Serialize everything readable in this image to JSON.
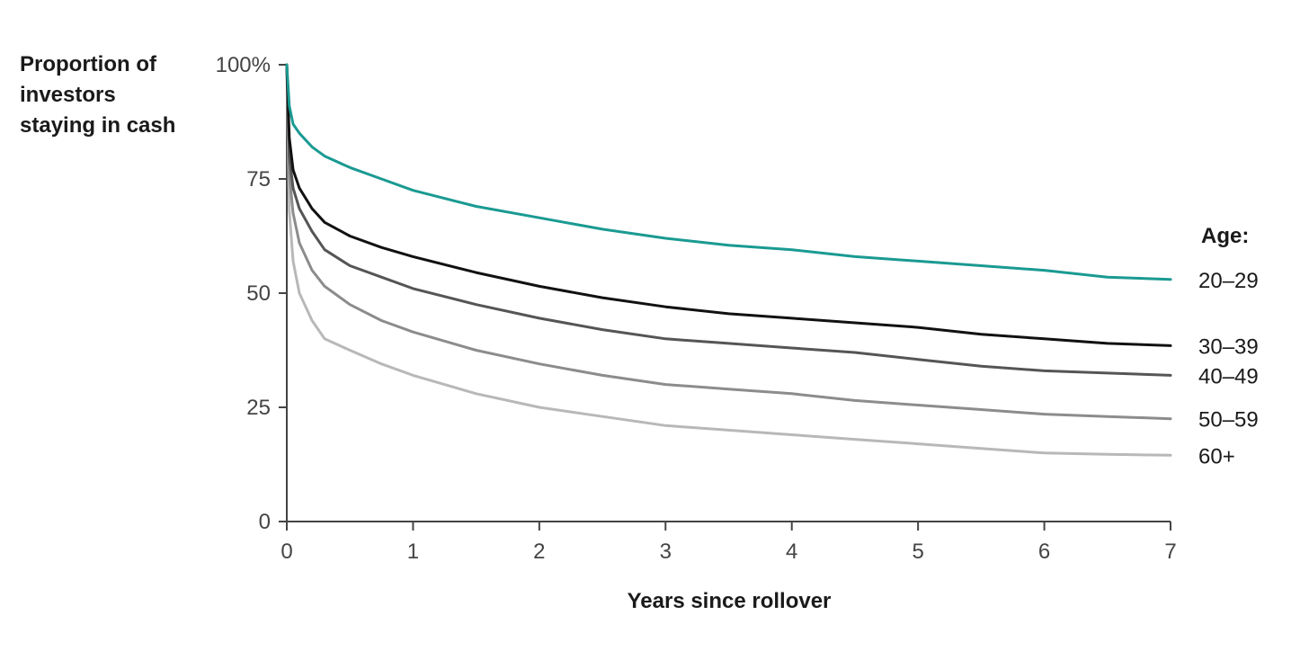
{
  "chart_data": {
    "type": "line",
    "ylabel_lines": [
      "Proportion of",
      "investors",
      "staying in cash"
    ],
    "xlabel": "Years since rollover",
    "xlim": [
      0,
      7
    ],
    "ylim": [
      0,
      100
    ],
    "x_ticks": [
      "0",
      "1",
      "2",
      "3",
      "4",
      "5",
      "6",
      "7"
    ],
    "y_ticks": [
      {
        "value": 100,
        "label": "100%"
      },
      {
        "value": 75,
        "label": "75"
      },
      {
        "value": 50,
        "label": "50"
      },
      {
        "value": 25,
        "label": "25"
      },
      {
        "value": 0,
        "label": "0"
      }
    ],
    "legend_title": "Age:",
    "x": [
      0,
      0.02,
      0.05,
      0.1,
      0.2,
      0.3,
      0.5,
      0.75,
      1,
      1.5,
      2,
      2.5,
      3,
      3.5,
      4,
      4.5,
      5,
      5.5,
      6,
      6.5,
      7
    ],
    "series": [
      {
        "name": "20–29",
        "color": "#1a9a92",
        "values": [
          100,
          91,
          87,
          85,
          82,
          80,
          77.5,
          75,
          72.5,
          69,
          66.5,
          64,
          62,
          60.5,
          59.5,
          58,
          57,
          56,
          55,
          53.5,
          53
        ]
      },
      {
        "name": "30–39",
        "color": "#111111",
        "values": [
          100,
          84,
          77,
          73,
          68.5,
          65.5,
          62.5,
          60,
          58,
          54.5,
          51.5,
          49,
          47,
          45.5,
          44.5,
          43.5,
          42.5,
          41,
          40,
          39,
          38.5
        ]
      },
      {
        "name": "40–49",
        "color": "#555555",
        "values": [
          100,
          80,
          73,
          68.5,
          63.5,
          59.5,
          56,
          53.5,
          51,
          47.5,
          44.5,
          42,
          40,
          39,
          38,
          37,
          35.5,
          34,
          33,
          32.5,
          32
        ]
      },
      {
        "name": "50–59",
        "color": "#8c8c8c",
        "values": [
          100,
          76,
          67.5,
          61,
          55,
          51.5,
          47.5,
          44,
          41.5,
          37.5,
          34.5,
          32,
          30,
          29,
          28,
          26.5,
          25.5,
          24.5,
          23.5,
          23,
          22.5
        ]
      },
      {
        "name": "60+",
        "color": "#b8b8b8",
        "values": [
          100,
          68,
          57,
          50,
          44,
          40,
          37.5,
          34.5,
          32,
          28,
          25,
          23,
          21,
          20,
          19,
          18,
          17,
          16,
          15,
          14.7,
          14.5
        ]
      }
    ]
  }
}
